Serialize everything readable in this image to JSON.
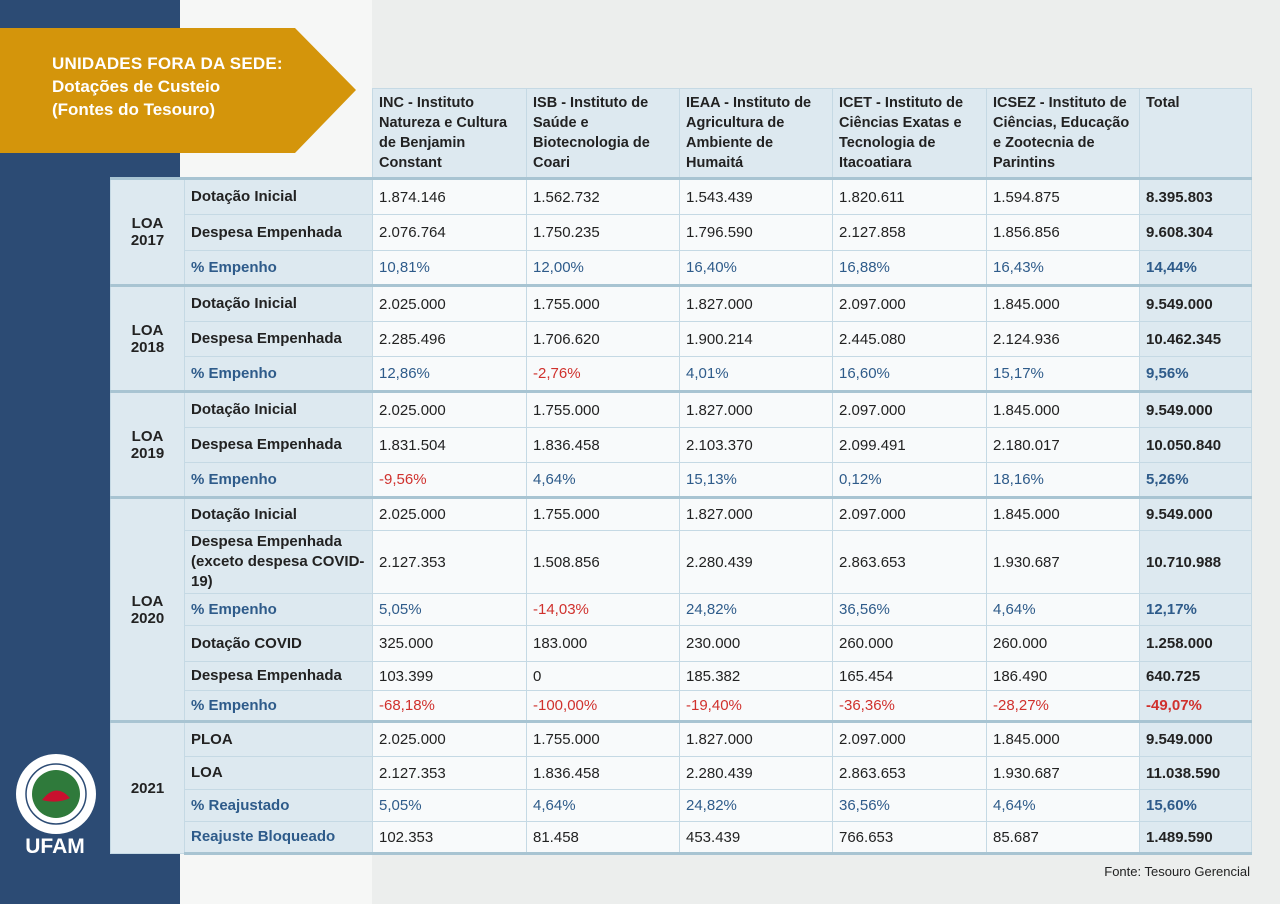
{
  "header": {
    "title": [
      "UNIDADES FORA DA SEDE:",
      "Dotações de Custeio",
      "(Fontes do Tesouro)"
    ]
  },
  "table": {
    "columns": [
      "INC - Instituto Natureza e Cultura de Benjamin Constant",
      "ISB - Instituto de Saúde e Biotecnologia de Coari",
      "IEAA - Instituto de Agricultura de Ambiente de Humaitá",
      "ICET - Instituto de Ciências Exatas e Tecnologia de Itacoatiara",
      "ICSEZ - Instituto de Ciências, Educação e Zootecnia de Parintins",
      "Total"
    ],
    "groups": [
      {
        "label": "LOA 2017",
        "rows": [
          {
            "label": "Dotação Inicial",
            "values": [
              "1.874.146",
              "1.562.732",
              "1.543.439",
              "1.820.611",
              "1.594.875",
              "8.395.803"
            ]
          },
          {
            "label": "Despesa Empenhada",
            "values": [
              "2.076.764",
              "1.750.235",
              "1.796.590",
              "2.127.858",
              "1.856.856",
              "9.608.304"
            ]
          },
          {
            "label": "% Empenho",
            "values": [
              "10,81%",
              "12,00%",
              "16,40%",
              "16,88%",
              "16,43%",
              "14,44%"
            ]
          }
        ]
      },
      {
        "label": "LOA 2018",
        "rows": [
          {
            "label": "Dotação Inicial",
            "values": [
              "2.025.000",
              "1.755.000",
              "1.827.000",
              "2.097.000",
              "1.845.000",
              "9.549.000"
            ]
          },
          {
            "label": "Despesa Empenhada",
            "values": [
              "2.285.496",
              "1.706.620",
              "1.900.214",
              "2.445.080",
              "2.124.936",
              "10.462.345"
            ]
          },
          {
            "label": "% Empenho",
            "values": [
              "12,86%",
              "-2,76%",
              "4,01%",
              "16,60%",
              "15,17%",
              "9,56%"
            ]
          }
        ]
      },
      {
        "label": "LOA 2019",
        "rows": [
          {
            "label": "Dotação Inicial",
            "values": [
              "2.025.000",
              "1.755.000",
              "1.827.000",
              "2.097.000",
              "1.845.000",
              "9.549.000"
            ]
          },
          {
            "label": "Despesa Empenhada",
            "values": [
              "1.831.504",
              "1.836.458",
              "2.103.370",
              "2.099.491",
              "2.180.017",
              "10.050.840"
            ]
          },
          {
            "label": "% Empenho",
            "values": [
              "-9,56%",
              "4,64%",
              "15,13%",
              "0,12%",
              "18,16%",
              "5,26%"
            ]
          }
        ]
      },
      {
        "label": "LOA 2020",
        "rows": [
          {
            "label": "Dotação Inicial",
            "values": [
              "2.025.000",
              "1.755.000",
              "1.827.000",
              "2.097.000",
              "1.845.000",
              "9.549.000"
            ]
          },
          {
            "label": "Despesa Empenhada (exceto despesa COVID-19)",
            "values": [
              "2.127.353",
              "1.508.856",
              "2.280.439",
              "2.863.653",
              "1.930.687",
              "10.710.988"
            ]
          },
          {
            "label": "% Empenho",
            "values": [
              "5,05%",
              "-14,03%",
              "24,82%",
              "36,56%",
              "4,64%",
              "12,17%"
            ]
          },
          {
            "label": "Dotação COVID",
            "values": [
              "325.000",
              "183.000",
              "230.000",
              "260.000",
              "260.000",
              "1.258.000"
            ]
          },
          {
            "label": "Despesa Empenhada",
            "values": [
              "103.399",
              "0",
              "185.382",
              "165.454",
              "186.490",
              "640.725"
            ]
          },
          {
            "label": "% Empenho",
            "values": [
              "-68,18%",
              "-100,00%",
              "-19,40%",
              "-36,36%",
              "-28,27%",
              "-49,07%"
            ]
          }
        ]
      },
      {
        "label": "2021",
        "rows": [
          {
            "label": "PLOA",
            "values": [
              "2.025.000",
              "1.755.000",
              "1.827.000",
              "2.097.000",
              "1.845.000",
              "9.549.000"
            ]
          },
          {
            "label": "LOA",
            "values": [
              "2.127.353",
              "1.836.458",
              "2.280.439",
              "2.863.653",
              "1.930.687",
              "11.038.590"
            ]
          },
          {
            "label": "% Reajustado",
            "values": [
              "5,05%",
              "4,64%",
              "24,82%",
              "36,56%",
              "4,64%",
              "15,60%"
            ]
          },
          {
            "label": "Reajuste Bloqueado",
            "values": [
              "102.353",
              "81.458",
              "453.439",
              "766.653",
              "85.687",
              "1.489.590"
            ]
          }
        ]
      }
    ]
  },
  "logo": {
    "name": "UFAM"
  },
  "source": "Fonte: Tesouro Gerencial"
}
